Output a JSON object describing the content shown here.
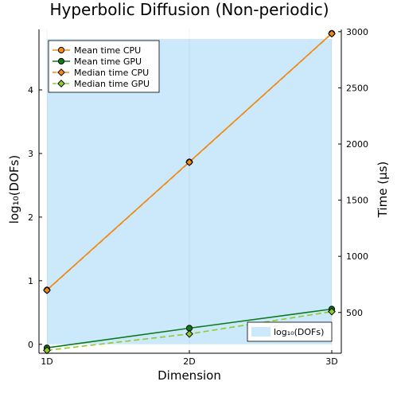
{
  "chart_data": {
    "type": "line",
    "title": "Hyperbolic Diffusion (Non-periodic)",
    "xlabel": "Dimension",
    "ylabel_left": "log₁₀(DOFs)",
    "ylabel_right": "Time (µs)",
    "categories": [
      "1D",
      "2D",
      "3D"
    ],
    "left_axis": {
      "ylim": [
        -0.14,
        4.95
      ],
      "ticks": [
        "0",
        "1",
        "2",
        "3",
        "4"
      ]
    },
    "right_axis": {
      "ylim": [
        137,
        3020
      ],
      "ticks": [
        "500",
        "1000",
        "1500",
        "2000",
        "2500",
        "3000"
      ]
    },
    "area_series": {
      "name": "log₁₀(DOFs)",
      "axis": "left",
      "values": [
        4.8,
        4.8,
        4.8
      ],
      "color": "#cce8fb"
    },
    "series": [
      {
        "name": "Mean time CPU",
        "axis": "right",
        "values": [
          700,
          1840,
          2985
        ],
        "color": "#f08a14",
        "marker": "circle",
        "dash": false
      },
      {
        "name": "Mean time GPU",
        "axis": "right",
        "values": [
          185,
          360,
          530
        ],
        "color": "#0b7a1a",
        "marker": "circle",
        "dash": false
      },
      {
        "name": "Median time CPU",
        "axis": "right",
        "values": [
          698,
          1838,
          2983
        ],
        "color": "#f08a14",
        "marker": "diamond",
        "dash": true
      },
      {
        "name": "Median time GPU",
        "axis": "right",
        "values": [
          163,
          309,
          508
        ],
        "color": "#8fcb2a",
        "marker": "diamond",
        "dash": true
      }
    ],
    "grid": true,
    "legend_position": "top-left",
    "area_legend_position": "bottom-right"
  }
}
